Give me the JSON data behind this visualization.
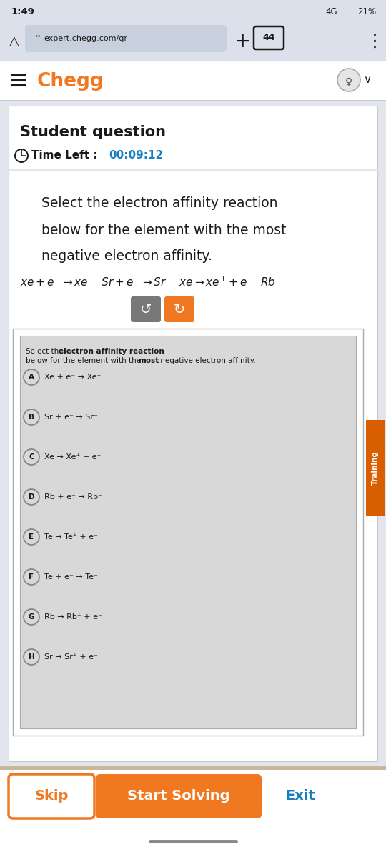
{
  "status_bar_text": "1:49",
  "url_text": "expert.chegg.com/qr",
  "tab_count": "44",
  "chegg_label": "Chegg",
  "section_title": "Student question",
  "time_label": "Time Left : ",
  "time_value": "00:09:12",
  "question_line1": "Select the electron affinity reaction",
  "question_line2": "below for the element with the most",
  "question_line3": "negative electron affinity.",
  "inner_box_title_normal": "Select the ",
  "inner_box_title_bold": "electron affinity reaction",
  "inner_box_title_mid": " below for the element with the ",
  "inner_box_title_bold2": "most",
  "inner_box_title_end": " negative electron affinity.",
  "options": [
    {
      "label": "A",
      "text": "Xe + e⁻ → Xe⁻"
    },
    {
      "label": "B",
      "text": "Sr + e⁻ → Sr⁻"
    },
    {
      "label": "C",
      "text": "Xe → Xe⁺ + e⁻"
    },
    {
      "label": "D",
      "text": "Rb + e⁻ → Rb⁻"
    },
    {
      "label": "E",
      "text": "Te → Te⁺ + e⁻"
    },
    {
      "label": "F",
      "text": "Te + e⁻ → Te⁻"
    },
    {
      "label": "G",
      "text": "Rb → Rb⁺ + e⁻"
    },
    {
      "label": "H",
      "text": "Sr → Sr⁺ + e⁻"
    }
  ],
  "btn_skip": "Skip",
  "btn_solve": "Start Solving",
  "btn_exit": "Exit",
  "bg_top": "#dce0ea",
  "bg_main": "#e2e5ed",
  "white": "#ffffff",
  "orange": "#f07820",
  "dark_text": "#1a1a1a",
  "blue_time": "#1a7fc1",
  "chegg_orange": "#f07820",
  "inner_box_bg": "#d8d8d8",
  "outer_box_bg": "#f2f2f2",
  "border_color": "#c0c0c0",
  "training_bg": "#d95e00",
  "btn_border": "#f07820",
  "exit_color": "#1a7fc1",
  "gray_btn": "#888888"
}
